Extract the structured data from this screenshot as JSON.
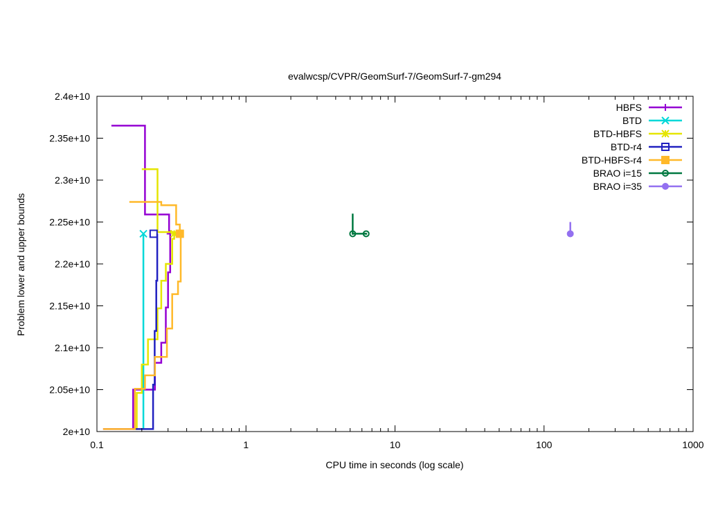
{
  "chart_data": {
    "type": "line",
    "title": "evalwcsp/CVPR/GeomSurf-7/GeomSurf-7-gm294",
    "xlabel": "CPU time in seconds (log scale)",
    "ylabel": "Problem lower and upper bounds",
    "xscale": "log",
    "xlim": [
      0.1,
      1000
    ],
    "ylim": [
      20000000000,
      24000000000
    ],
    "x_ticks": [
      0.1,
      1,
      10,
      100,
      1000
    ],
    "x_tick_labels": [
      "0.1",
      "1",
      "10",
      "100",
      "1000"
    ],
    "y_ticks": [
      20000000000,
      20500000000,
      21000000000,
      21500000000,
      22000000000,
      22500000000,
      23000000000,
      23500000000,
      24000000000
    ],
    "y_tick_labels": [
      "2e+10",
      "2.05e+10",
      "2.1e+10",
      "2.15e+10",
      "2.2e+10",
      "2.25e+10",
      "2.3e+10",
      "2.35e+10",
      "2.4e+10"
    ],
    "legend_position": "top-right",
    "grid": false,
    "series": [
      {
        "name": "HBFS",
        "color": "#9400d3",
        "marker": "plus",
        "upper": [
          [
            0.125,
            23650000000
          ],
          [
            0.21,
            23650000000
          ],
          [
            0.21,
            22590000000
          ],
          [
            0.305,
            22590000000
          ],
          [
            0.305,
            22370000000
          ]
        ],
        "lower": [
          [
            0.11,
            20030000000
          ],
          [
            0.175,
            20030000000
          ],
          [
            0.175,
            20500000000
          ],
          [
            0.245,
            20500000000
          ],
          [
            0.245,
            20820000000
          ],
          [
            0.27,
            20820000000
          ],
          [
            0.27,
            21060000000
          ],
          [
            0.29,
            21060000000
          ],
          [
            0.29,
            21480000000
          ],
          [
            0.3,
            21480000000
          ],
          [
            0.3,
            21900000000
          ],
          [
            0.31,
            21900000000
          ],
          [
            0.31,
            22360000000
          ]
        ],
        "final": [
          0.31,
          22360000000
        ]
      },
      {
        "name": "BTD",
        "color": "#00d8d8",
        "marker": "x",
        "upper": [],
        "lower": [
          [
            0.205,
            20030000000
          ],
          [
            0.205,
            22360000000
          ]
        ],
        "final": [
          0.205,
          22360000000
        ]
      },
      {
        "name": "BTD-HBFS",
        "color": "#e5e500",
        "marker": "star",
        "upper": [
          [
            0.2,
            23130000000
          ],
          [
            0.255,
            23130000000
          ],
          [
            0.255,
            22380000000
          ],
          [
            0.35,
            22380000000
          ]
        ],
        "lower": [
          [
            0.18,
            20030000000
          ],
          [
            0.185,
            20030000000
          ],
          [
            0.185,
            20460000000
          ],
          [
            0.2,
            20460000000
          ],
          [
            0.2,
            20800000000
          ],
          [
            0.22,
            20800000000
          ],
          [
            0.22,
            21100000000
          ],
          [
            0.255,
            21100000000
          ],
          [
            0.255,
            21470000000
          ],
          [
            0.27,
            21470000000
          ],
          [
            0.27,
            21800000000
          ],
          [
            0.29,
            21800000000
          ],
          [
            0.29,
            22000000000
          ],
          [
            0.32,
            22000000000
          ],
          [
            0.32,
            22300000000
          ],
          [
            0.33,
            22300000000
          ],
          [
            0.33,
            22360000000
          ]
        ],
        "final": [
          0.33,
          22360000000
        ]
      },
      {
        "name": "BTD-r4",
        "color": "#2020c0",
        "marker": "square",
        "upper": [],
        "lower": [
          [
            0.175,
            20030000000
          ],
          [
            0.238,
            20030000000
          ],
          [
            0.238,
            20560000000
          ],
          [
            0.244,
            20560000000
          ],
          [
            0.244,
            21200000000
          ],
          [
            0.25,
            21200000000
          ],
          [
            0.25,
            21800000000
          ],
          [
            0.254,
            21800000000
          ],
          [
            0.254,
            22360000000
          ]
        ],
        "final": [
          0.24,
          22360000000
        ]
      },
      {
        "name": "BTD-HBFS-r4",
        "color": "#ffb92a",
        "marker": "filled-square",
        "upper": [
          [
            0.165,
            22740000000
          ],
          [
            0.27,
            22740000000
          ],
          [
            0.27,
            22700000000
          ],
          [
            0.34,
            22700000000
          ],
          [
            0.34,
            22470000000
          ],
          [
            0.36,
            22470000000
          ],
          [
            0.36,
            22400000000
          ],
          [
            0.37,
            22400000000
          ]
        ],
        "lower": [
          [
            0.11,
            20030000000
          ],
          [
            0.18,
            20030000000
          ],
          [
            0.18,
            20510000000
          ],
          [
            0.21,
            20510000000
          ],
          [
            0.21,
            20670000000
          ],
          [
            0.245,
            20670000000
          ],
          [
            0.245,
            20890000000
          ],
          [
            0.295,
            20890000000
          ],
          [
            0.295,
            21230000000
          ],
          [
            0.32,
            21230000000
          ],
          [
            0.32,
            21640000000
          ],
          [
            0.35,
            21640000000
          ],
          [
            0.35,
            21790000000
          ],
          [
            0.365,
            21790000000
          ],
          [
            0.365,
            22360000000
          ]
        ],
        "final": [
          0.36,
          22360000000
        ]
      },
      {
        "name": "BRAO i=15",
        "color": "#007840",
        "marker": "circle-dot",
        "upper": [
          [
            5.2,
            22600000000
          ],
          [
            5.2,
            22360000000
          ]
        ],
        "lower": [
          [
            5.2,
            22360000000
          ],
          [
            6.4,
            22360000000
          ]
        ],
        "points": [
          [
            5.2,
            22360000000
          ],
          [
            6.4,
            22360000000
          ]
        ],
        "final": [
          6.4,
          22360000000
        ]
      },
      {
        "name": "BRAO i=35",
        "color": "#9370f0",
        "marker": "filled-circle",
        "upper": [
          [
            150,
            22500000000
          ],
          [
            150,
            22360000000
          ]
        ],
        "lower": [],
        "points": [
          [
            150,
            22360000000
          ]
        ],
        "final": [
          150,
          22360000000
        ]
      }
    ]
  }
}
